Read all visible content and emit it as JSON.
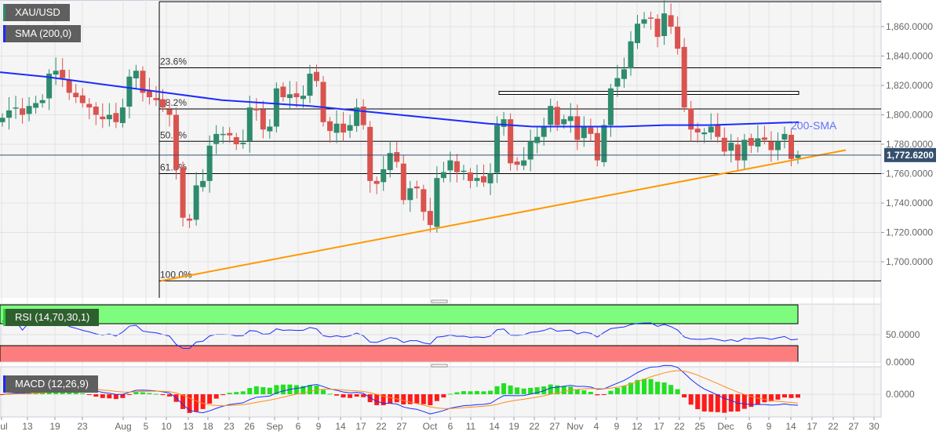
{
  "chart_data": {
    "type": "candlestick",
    "symbol": "XAU/USD",
    "indicators": {
      "sma": {
        "label": "SMA (200,0)",
        "annotation": "200-SMA",
        "color": "#1a2cff"
      },
      "rsi": {
        "label": "RSI (14,70,30,1)",
        "upper": 70,
        "lower": 30,
        "ticks": [
          "50.0000",
          "0.0000"
        ]
      },
      "macd": {
        "label": "MACD (12,26,9)",
        "ticks": [
          "0.0000"
        ]
      }
    },
    "last_price": "1,772.6200",
    "y_range": [
      1687,
      1877
    ],
    "y_ticks": [
      "1,860.0000",
      "1,840.0000",
      "1,820.0000",
      "1,800.0000",
      "1,780.0000",
      "1,760.0000",
      "1,740.0000",
      "1,720.0000",
      "1,700.0000"
    ],
    "x_ticks": [
      "Jul",
      "13",
      "19",
      "23",
      "Aug",
      "5",
      "10",
      "13",
      "18",
      "23",
      "26",
      "Sep",
      "6",
      "9",
      "14",
      "17",
      "22",
      "27",
      "Oct",
      "6",
      "11",
      "14",
      "19",
      "22",
      "27",
      "Nov",
      "4",
      "9",
      "12",
      "17",
      "22",
      "25",
      "Dec",
      "6",
      "9",
      "14",
      "17",
      "22",
      "27",
      "30"
    ],
    "fibonacci": [
      {
        "label": "23.6%",
        "price": 1832
      },
      {
        "label": "38.2%",
        "price": 1804
      },
      {
        "label": "50.0%",
        "price": 1782
      },
      {
        "label": "61.8%",
        "price": 1760
      },
      {
        "label": "100.0%",
        "price": 1687
      }
    ],
    "fib_top": 1877,
    "resistance_zone": [
      1814,
      1816
    ],
    "trendline": {
      "from": 1687,
      "to": 1776,
      "color": "#ff9800"
    },
    "closes": [
      1798,
      1803,
      1805,
      1800,
      1806,
      1808,
      1810,
      1828,
      1830,
      1825,
      1815,
      1812,
      1808,
      1805,
      1800,
      1797,
      1800,
      1795,
      1805,
      1826,
      1830,
      1815,
      1812,
      1810,
      1805,
      1800,
      1763,
      1730,
      1728,
      1752,
      1755,
      1779,
      1787,
      1787,
      1786,
      1780,
      1781,
      1805,
      1803,
      1790,
      1792,
      1818,
      1812,
      1814,
      1812,
      1813,
      1828,
      1823,
      1795,
      1789,
      1794,
      1788,
      1793,
      1805,
      1793,
      1755,
      1753,
      1763,
      1774,
      1768,
      1742,
      1750,
      1750,
      1734,
      1725,
      1757,
      1761,
      1769,
      1761,
      1762,
      1755,
      1757,
      1754,
      1760,
      1793,
      1797,
      1767,
      1766,
      1769,
      1782,
      1785,
      1792,
      1806,
      1793,
      1797,
      1799,
      1783,
      1792,
      1787,
      1769,
      1793,
      1818,
      1825,
      1831,
      1850,
      1862,
      1865,
      1866,
      1853,
      1869,
      1860,
      1845,
      1805,
      1790,
      1788,
      1788,
      1792,
      1785,
      1775,
      1781,
      1769,
      1783,
      1779,
      1784,
      1783,
      1776,
      1782,
      1787,
      1770,
      1772.62
    ],
    "sma200": [
      1829,
      1826,
      1822,
      1818,
      1814,
      1810,
      1808,
      1806,
      1803,
      1800,
      1797,
      1794,
      1792,
      1792,
      1792,
      1793,
      1793,
      1794,
      1795
    ],
    "colors": {
      "up": "#2e8b6e",
      "down": "#d9534f",
      "rsi_upper": "#7dfc7d",
      "rsi_lower": "#fc7d7d",
      "macd": "#1a2cff",
      "signal": "#ff8c1a"
    }
  }
}
